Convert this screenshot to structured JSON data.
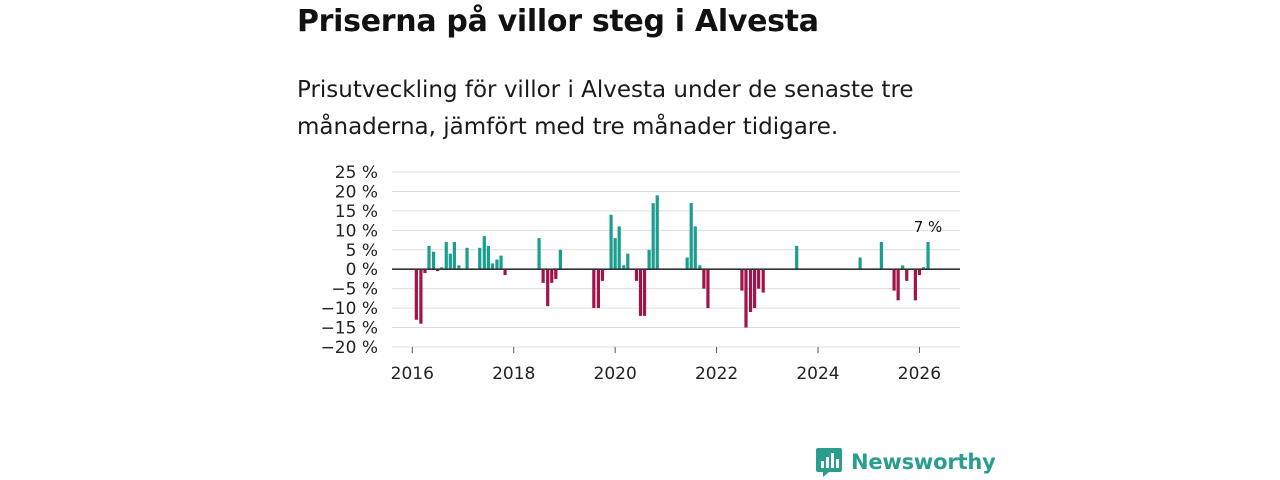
{
  "header": {
    "title": "Priserna på villor steg i Alvesta",
    "subtitle": "Prisutveckling för villor i Alvesta under de senaste tre månaderna, jämfört med tre månader tidigare."
  },
  "chart_data": {
    "type": "bar",
    "title": "Priserna på villor steg i Alvesta",
    "xlabel": "",
    "ylabel": "",
    "ylim": [
      -20,
      25
    ],
    "yticks": [
      25,
      20,
      15,
      10,
      5,
      0,
      -5,
      -10,
      -15,
      -20
    ],
    "ytick_labels": [
      "25 %",
      "20 %",
      "15 %",
      "10 %",
      "5 %",
      "0 %",
      "−5 %",
      "−10 %",
      "−15 %",
      "−20 %"
    ],
    "xticks": [
      2016,
      2018,
      2020,
      2022,
      2024,
      2026
    ],
    "xtick_labels": [
      "2016",
      "2018",
      "2020",
      "2022",
      "2024",
      "2026"
    ],
    "xlim": [
      2015.6,
      2026.8
    ],
    "grid": true,
    "colors": {
      "positive": "#1a9e8f",
      "negative": "#a1134a",
      "zero_line": "#333333",
      "grid": "#dddddd"
    },
    "annotation": {
      "x": 2026.17,
      "label": "7 %"
    },
    "x": [
      2016.08,
      2016.17,
      2016.25,
      2016.33,
      2016.42,
      2016.5,
      2016.58,
      2016.67,
      2016.75,
      2016.83,
      2016.92,
      2017.08,
      2017.33,
      2017.42,
      2017.5,
      2017.58,
      2017.67,
      2017.75,
      2017.83,
      2018.5,
      2018.58,
      2018.67,
      2018.75,
      2018.83,
      2018.92,
      2019.58,
      2019.67,
      2019.75,
      2019.92,
      2020.0,
      2020.08,
      2020.17,
      2020.25,
      2020.42,
      2020.5,
      2020.58,
      2020.67,
      2020.75,
      2020.83,
      2021.42,
      2021.5,
      2021.58,
      2021.67,
      2021.75,
      2021.83,
      2022.5,
      2022.58,
      2022.67,
      2022.75,
      2022.83,
      2022.92,
      2023.58,
      2024.83,
      2025.25,
      2025.5,
      2025.58,
      2025.67,
      2025.75,
      2025.92,
      2026.0,
      2026.08,
      2026.17
    ],
    "values": [
      -13,
      -14,
      -1,
      6,
      4.5,
      -0.5,
      0.5,
      7,
      4,
      7,
      1,
      5.5,
      5.5,
      8.5,
      6,
      1.5,
      2.5,
      3.5,
      -1.5,
      8,
      -3.5,
      -9.5,
      -3.5,
      -2.5,
      5,
      -10,
      -10,
      -3,
      14,
      8,
      11,
      1,
      4,
      -3,
      -12,
      -12,
      5,
      17,
      19,
      3,
      17,
      11,
      1,
      -5,
      -10,
      -5.5,
      -15,
      -11,
      -10,
      -5,
      -6,
      6,
      3,
      7,
      -5.5,
      -8,
      1,
      -3,
      -8,
      -1.5,
      0.5,
      7
    ]
  },
  "brand": {
    "name": "Newsworthy",
    "logo_icon": "bar-chart-logo-icon"
  }
}
